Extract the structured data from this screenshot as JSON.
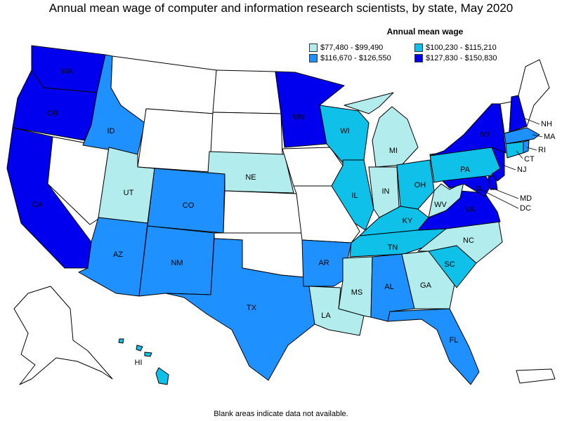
{
  "title": "Annual mean wage of computer and information research scientists, by state, May 2020",
  "legend": {
    "title": "Annual mean wage",
    "bins": [
      {
        "label": "$77,480 - $99,490",
        "color": "#b3ecec"
      },
      {
        "label": "$100,230 - $115,210",
        "color": "#0fc0e8"
      },
      {
        "label": "$116,670 - $126,550",
        "color": "#1e90ff"
      },
      {
        "label": "$127,830 - $150,830",
        "color": "#0000ee"
      }
    ],
    "no_data_color": "#ffffff"
  },
  "footnote": "Blank areas indicate data not available.",
  "states": {
    "WA": {
      "label": "WA",
      "bin": 3
    },
    "OR": {
      "label": "OR",
      "bin": 3
    },
    "CA": {
      "label": "CA",
      "bin": 3
    },
    "ID": {
      "label": "ID",
      "bin": 2
    },
    "NV": {
      "label": "",
      "bin": null
    },
    "MT": {
      "label": "",
      "bin": null
    },
    "WY": {
      "label": "",
      "bin": null
    },
    "UT": {
      "label": "UT",
      "bin": 0
    },
    "CO": {
      "label": "CO",
      "bin": 2
    },
    "AZ": {
      "label": "AZ",
      "bin": 2
    },
    "NM": {
      "label": "NM",
      "bin": 2
    },
    "ND": {
      "label": "",
      "bin": null
    },
    "SD": {
      "label": "",
      "bin": null
    },
    "NE": {
      "label": "NE",
      "bin": 0
    },
    "KS": {
      "label": "",
      "bin": null
    },
    "OK": {
      "label": "",
      "bin": null
    },
    "TX": {
      "label": "TX",
      "bin": 2
    },
    "MN": {
      "label": "MN",
      "bin": 3
    },
    "IA": {
      "label": "",
      "bin": null
    },
    "MO": {
      "label": "",
      "bin": null
    },
    "AR": {
      "label": "AR",
      "bin": 2
    },
    "LA": {
      "label": "LA",
      "bin": 0
    },
    "WI": {
      "label": "WI",
      "bin": 1
    },
    "IL": {
      "label": "IL",
      "bin": 1
    },
    "MI": {
      "label": "MI",
      "bin": 0
    },
    "IN": {
      "label": "IN",
      "bin": 0
    },
    "OH": {
      "label": "OH",
      "bin": 1
    },
    "KY": {
      "label": "KY",
      "bin": 1
    },
    "TN": {
      "label": "TN",
      "bin": 1
    },
    "MS": {
      "label": "MS",
      "bin": 0
    },
    "AL": {
      "label": "AL",
      "bin": 2
    },
    "GA": {
      "label": "GA",
      "bin": 0
    },
    "FL": {
      "label": "FL",
      "bin": 2
    },
    "SC": {
      "label": "SC",
      "bin": 1
    },
    "NC": {
      "label": "NC",
      "bin": 0
    },
    "VA": {
      "label": "VA",
      "bin": 3
    },
    "WV": {
      "label": "WV",
      "bin": 0
    },
    "PA": {
      "label": "PA",
      "bin": 1
    },
    "NY": {
      "label": "NY",
      "bin": 3
    },
    "ME": {
      "label": "",
      "bin": null
    },
    "VT": {
      "label": "",
      "bin": null
    },
    "NH": {
      "label": "NH",
      "bin": 3
    },
    "MA": {
      "label": "MA",
      "bin": 2
    },
    "CT": {
      "label": "CT",
      "bin": 1
    },
    "RI": {
      "label": "RI",
      "bin": 2
    },
    "NJ": {
      "label": "NJ",
      "bin": 3
    },
    "DE": {
      "label": "",
      "bin": 3
    },
    "MD": {
      "label": "MD",
      "bin": 3
    },
    "DC": {
      "label": "DC",
      "bin": 3
    },
    "AK": {
      "label": "",
      "bin": null
    },
    "HI": {
      "label": "HI",
      "bin": 1
    },
    "PR": {
      "label": "",
      "bin": null
    }
  }
}
